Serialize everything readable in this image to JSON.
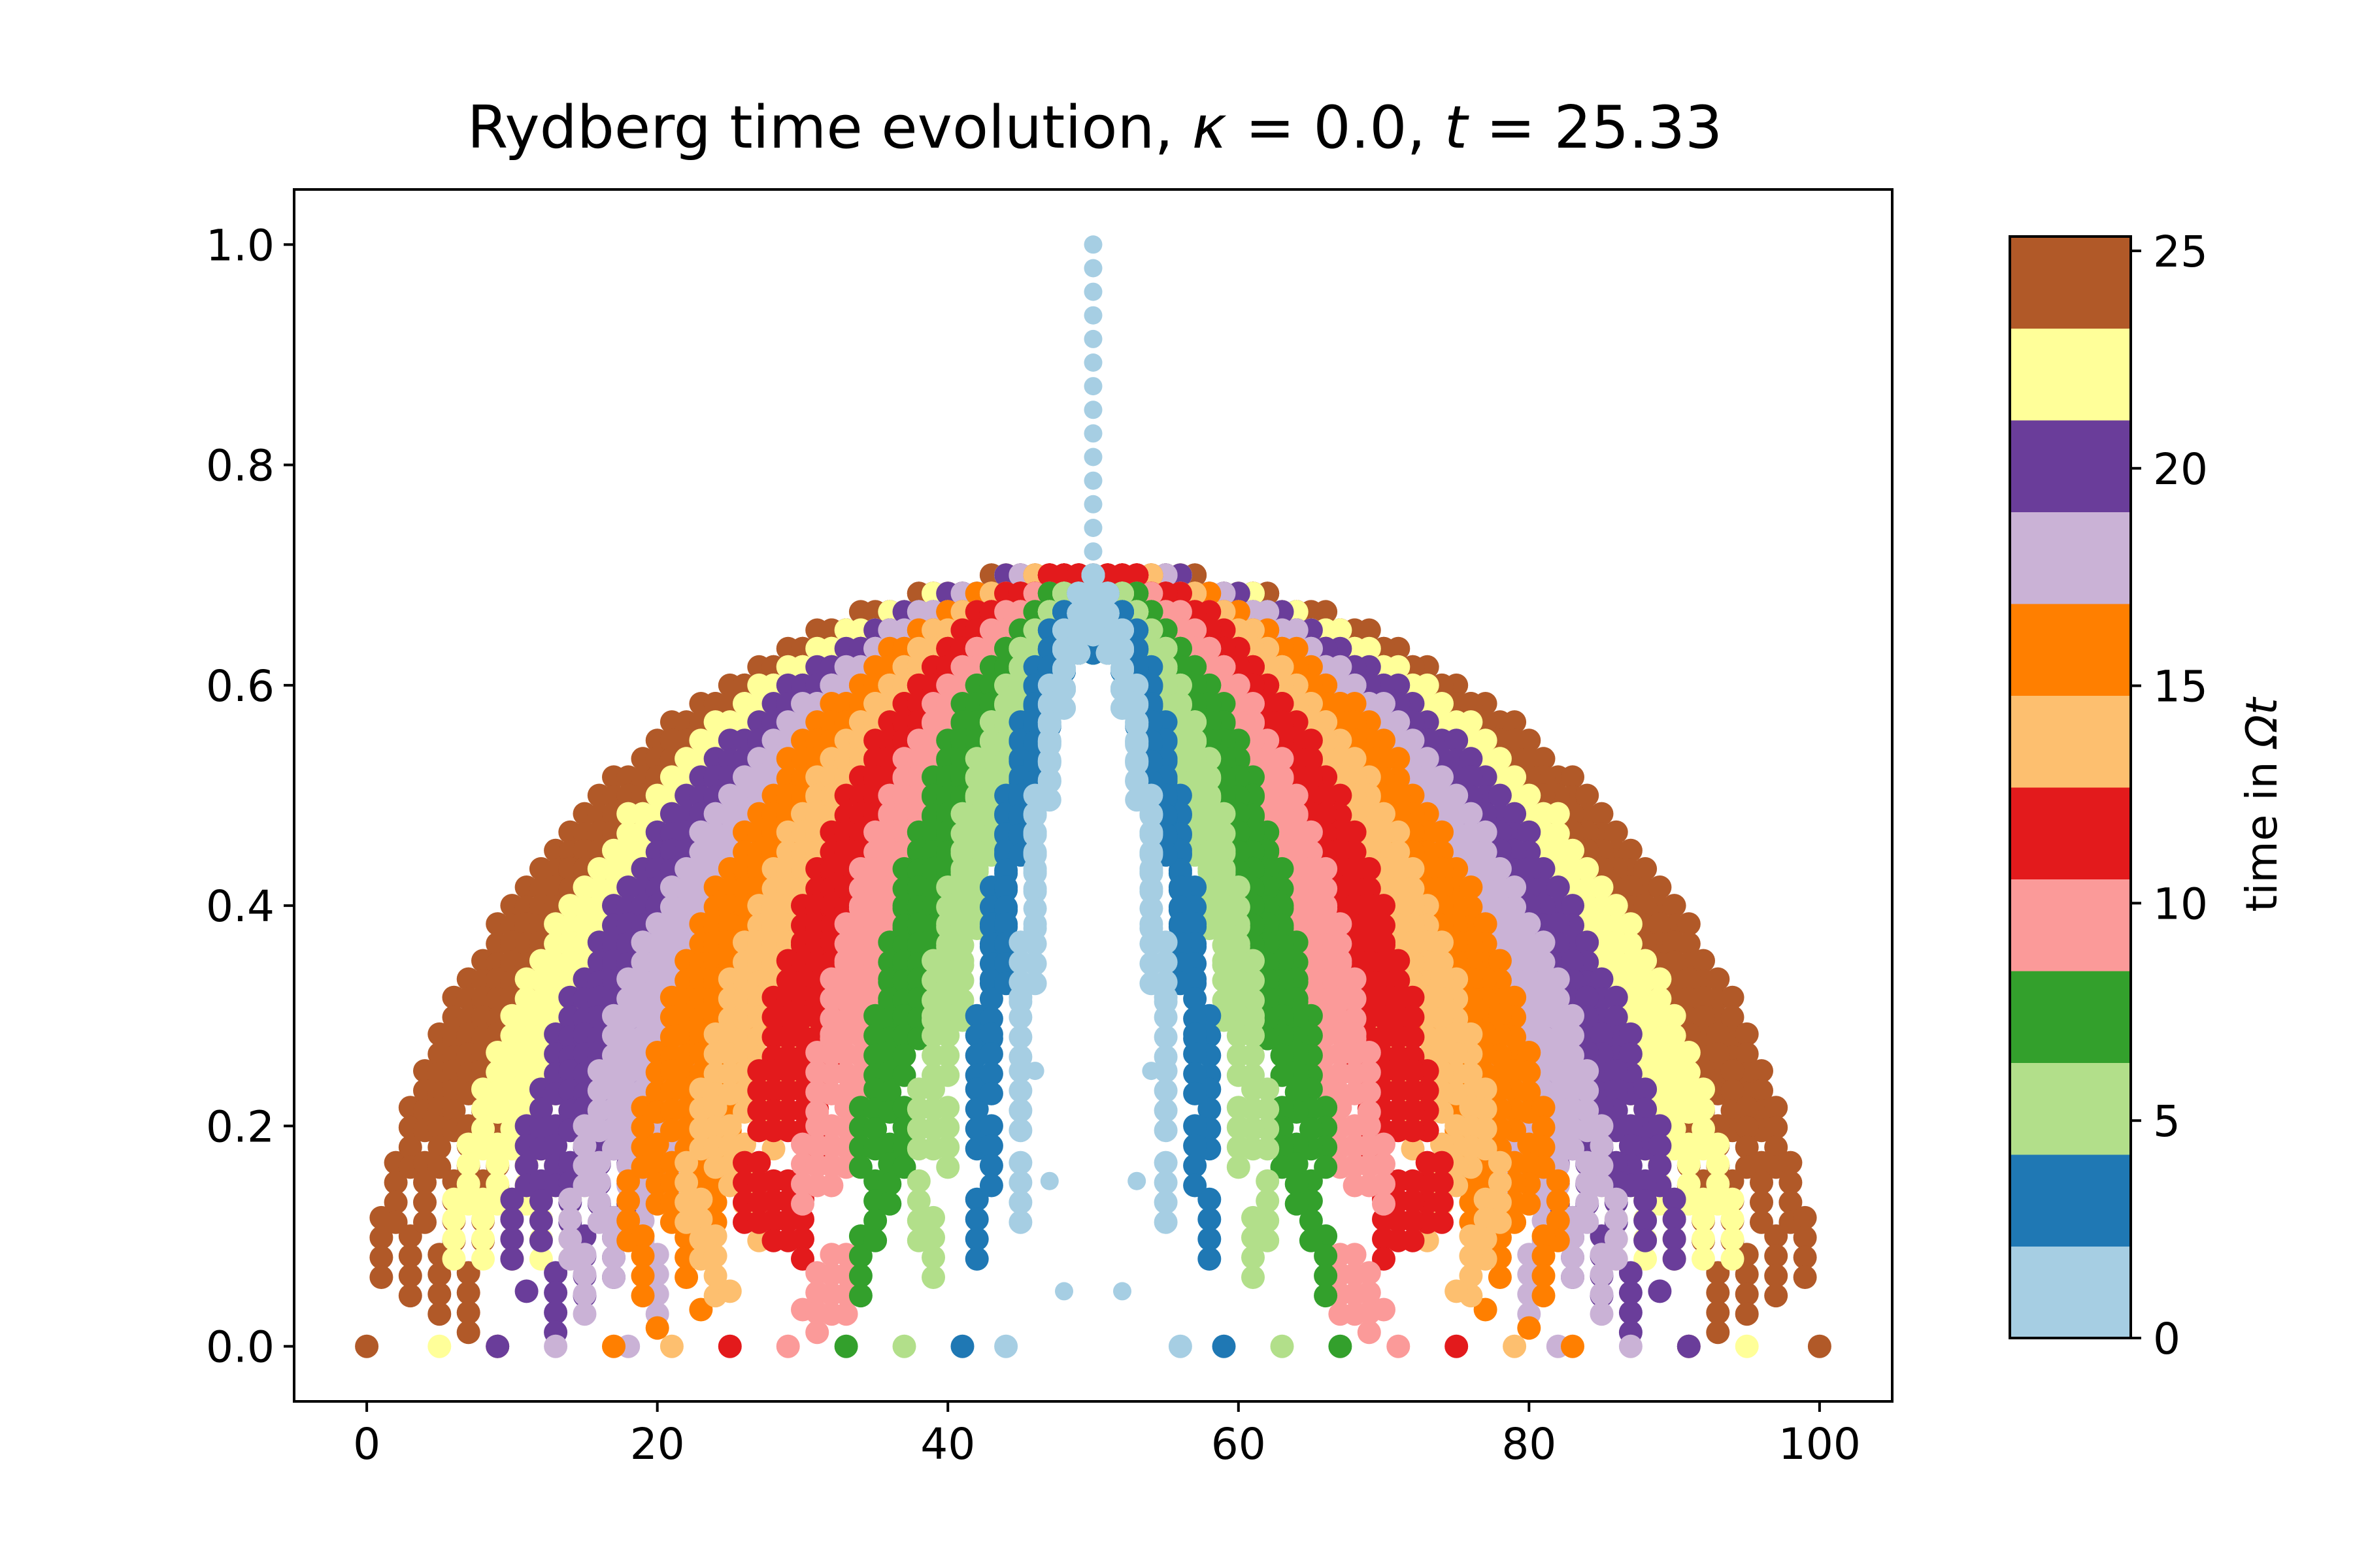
{
  "chart_data": {
    "type": "scatter",
    "title": "Rydberg time evolution, κ = 0.0, t = 25.33",
    "title_parts": {
      "prefix": "Rydberg time evolution, ",
      "kappa_symbol": "κ",
      "kappa_value": " = 0.0, ",
      "t_symbol": "t",
      "t_value": " = 25.33"
    },
    "xlabel": "",
    "ylabel": "",
    "xlim": [
      -5,
      105
    ],
    "ylim": [
      -0.05,
      1.05
    ],
    "x_ticks": [
      0,
      20,
      40,
      60,
      80,
      100
    ],
    "x_tick_labels": [
      "0",
      "20",
      "40",
      "60",
      "80",
      "100"
    ],
    "y_ticks": [
      0.0,
      0.2,
      0.4,
      0.6,
      0.8,
      1.0
    ],
    "y_tick_labels": [
      "0.0",
      "0.2",
      "0.4",
      "0.6",
      "0.8",
      "1.0"
    ],
    "grid": false,
    "x": "site index 0–100 (integer)",
    "series_description": "Each snapshot in time is a dome of points centred at x = 50; later snapshots are wider. Values listed per color band: time range, left/right extent of the dome, peak height.",
    "bands": [
      {
        "t_range": [
          0,
          2.11
        ],
        "color": "#a6cee3",
        "extent": [
          44,
          56
        ],
        "peak": 0.7
      },
      {
        "t_range": [
          2.11,
          4.22
        ],
        "color": "#1f78b4",
        "extent": [
          41,
          59
        ],
        "peak": 0.69
      },
      {
        "t_range": [
          4.22,
          6.33
        ],
        "color": "#b2df8a",
        "extent": [
          37,
          63
        ],
        "peak": 0.69
      },
      {
        "t_range": [
          6.33,
          8.44
        ],
        "color": "#33a02c",
        "extent": [
          33,
          67
        ],
        "peak": 0.69
      },
      {
        "t_range": [
          8.44,
          10.55
        ],
        "color": "#fb9a99",
        "extent": [
          29,
          71
        ],
        "peak": 0.69
      },
      {
        "t_range": [
          10.55,
          12.67
        ],
        "color": "#e31a1c",
        "extent": [
          25,
          75
        ],
        "peak": 0.7
      },
      {
        "t_range": [
          12.67,
          14.78
        ],
        "color": "#fdbf6f",
        "extent": [
          21,
          79
        ],
        "peak": 0.7
      },
      {
        "t_range": [
          14.78,
          16.89
        ],
        "color": "#ff7f00",
        "extent": [
          17,
          83
        ],
        "peak": 0.7
      },
      {
        "t_range": [
          16.89,
          19.0
        ],
        "color": "#cab2d6",
        "extent": [
          13,
          87
        ],
        "peak": 0.7
      },
      {
        "t_range": [
          19.0,
          21.11
        ],
        "color": "#6a3d9a",
        "extent": [
          9,
          91
        ],
        "peak": 0.7
      },
      {
        "t_range": [
          21.11,
          23.22
        ],
        "color": "#ffff99",
        "extent": [
          5,
          95
        ],
        "peak": 0.7
      },
      {
        "t_range": [
          23.22,
          25.33
        ],
        "color": "#b15928",
        "extent": [
          0,
          100
        ],
        "peak": 0.7
      }
    ],
    "initial_state": {
      "x": 50,
      "y": 1.0,
      "color": "#a6cee3"
    },
    "colorbar": {
      "label": "time in Ωt",
      "label_parts": {
        "prefix": "time in ",
        "symbol": "Ωt"
      },
      "range": [
        0,
        25.33
      ],
      "ticks": [
        0,
        5,
        10,
        15,
        20,
        25
      ],
      "tick_labels": [
        "0",
        "5",
        "10",
        "15",
        "20",
        "25"
      ],
      "colors": [
        "#a6cee3",
        "#1f78b4",
        "#b2df8a",
        "#33a02c",
        "#fb9a99",
        "#e31a1c",
        "#fdbf6f",
        "#ff7f00",
        "#cab2d6",
        "#6a3d9a",
        "#ffff99",
        "#b15928"
      ]
    }
  }
}
